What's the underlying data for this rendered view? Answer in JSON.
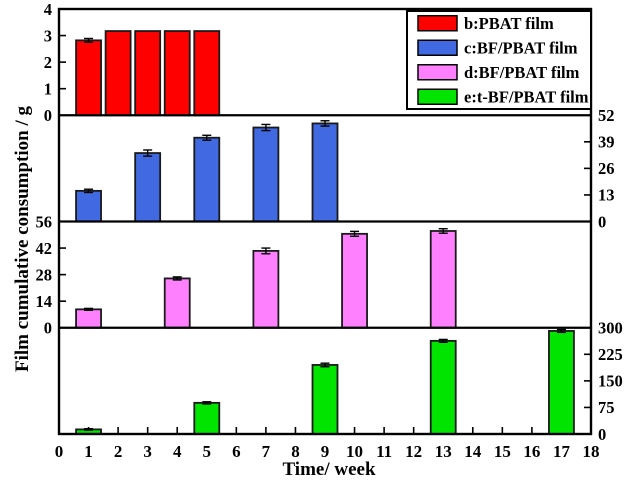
{
  "figure": {
    "background": "#ffffff",
    "border_color": "#000000",
    "text_color": "#000000"
  },
  "chart_data": {
    "type": "bar",
    "title": "",
    "xlabel": "Time/ week",
    "ylabel": "Film cumulative consumption / g",
    "x_axis": {
      "min": 0,
      "max": 18,
      "ticks": [
        0,
        1,
        2,
        3,
        4,
        5,
        6,
        7,
        8,
        9,
        10,
        11,
        12,
        13,
        14,
        15,
        16,
        17,
        18
      ]
    },
    "legend": {
      "position": "top-right",
      "entries": [
        {
          "label": "b:PBAT film",
          "color": "#ff0000"
        },
        {
          "label": "c:BF/PBAT film",
          "color": "#4169e1"
        },
        {
          "label": "d:BF/PBAT film",
          "color": "#ff80ff"
        },
        {
          "label": "e:t-BF/PBAT film",
          "color": "#00e400"
        }
      ]
    },
    "panels": [
      {
        "series": "b:PBAT film",
        "color": "#ff0000",
        "axis_side": "left",
        "ylim": [
          0,
          4
        ],
        "yticks": [
          0,
          1,
          2,
          3,
          4
        ],
        "weeks": [
          1,
          2,
          3,
          4,
          5
        ],
        "values": [
          2.82,
          3.17,
          3.17,
          3.17,
          3.17
        ],
        "errors": [
          0.07,
          0,
          0,
          0,
          0
        ]
      },
      {
        "series": "c:BF/PBAT film",
        "color": "#4169e1",
        "axis_side": "right",
        "ylim": [
          0,
          52
        ],
        "yticks": [
          0,
          13,
          26,
          39,
          52
        ],
        "weeks": [
          1,
          3,
          5,
          7,
          9
        ],
        "values": [
          15,
          33.5,
          41,
          46,
          48
        ],
        "errors": [
          0.8,
          1.5,
          1.2,
          1.5,
          1.3
        ]
      },
      {
        "series": "d:BF/PBAT film",
        "color": "#ff80ff",
        "axis_side": "left",
        "ylim": [
          0,
          56
        ],
        "yticks": [
          0,
          14,
          28,
          42,
          56
        ],
        "weeks": [
          1,
          4,
          7,
          10,
          13
        ],
        "values": [
          9.7,
          26,
          40.5,
          49.5,
          51
        ],
        "errors": [
          0.5,
          0.8,
          1.5,
          1.3,
          1.2
        ]
      },
      {
        "series": "e:t-BF/PBAT film",
        "color": "#00e400",
        "axis_side": "right",
        "ylim": [
          0,
          300
        ],
        "yticks": [
          0,
          75,
          150,
          225,
          300
        ],
        "weeks": [
          1,
          5,
          9,
          13,
          17
        ],
        "values": [
          13,
          88,
          195,
          263,
          291
        ],
        "errors": [
          2,
          3,
          5,
          4,
          4
        ]
      }
    ]
  }
}
